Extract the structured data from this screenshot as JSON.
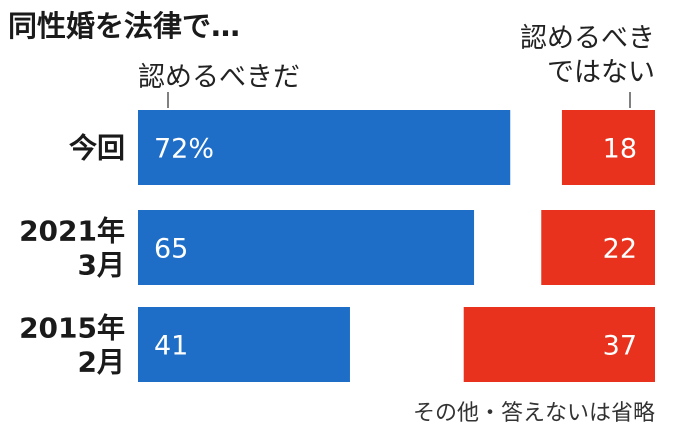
{
  "chart_data": {
    "type": "bar",
    "title": "同性婚を法律で…",
    "series": [
      {
        "name": "認めるべきだ",
        "color": "#1e6ec8",
        "values": [
          72,
          65,
          41
        ],
        "value_labels": [
          "72%",
          "65",
          "41"
        ]
      },
      {
        "name": "認めるべきではない",
        "name_lines": [
          "認めるべき",
          "ではない"
        ],
        "color": "#e8321e",
        "values": [
          18,
          22,
          37
        ],
        "value_labels": [
          "18",
          "22",
          "37"
        ]
      }
    ],
    "categories": [
      {
        "lines": [
          "今回"
        ]
      },
      {
        "lines": [
          "2021年",
          "3月"
        ]
      },
      {
        "lines": [
          "2015年",
          "2月"
        ]
      }
    ],
    "note": "その他・答えないは省略",
    "xlim": [
      0,
      100
    ]
  }
}
